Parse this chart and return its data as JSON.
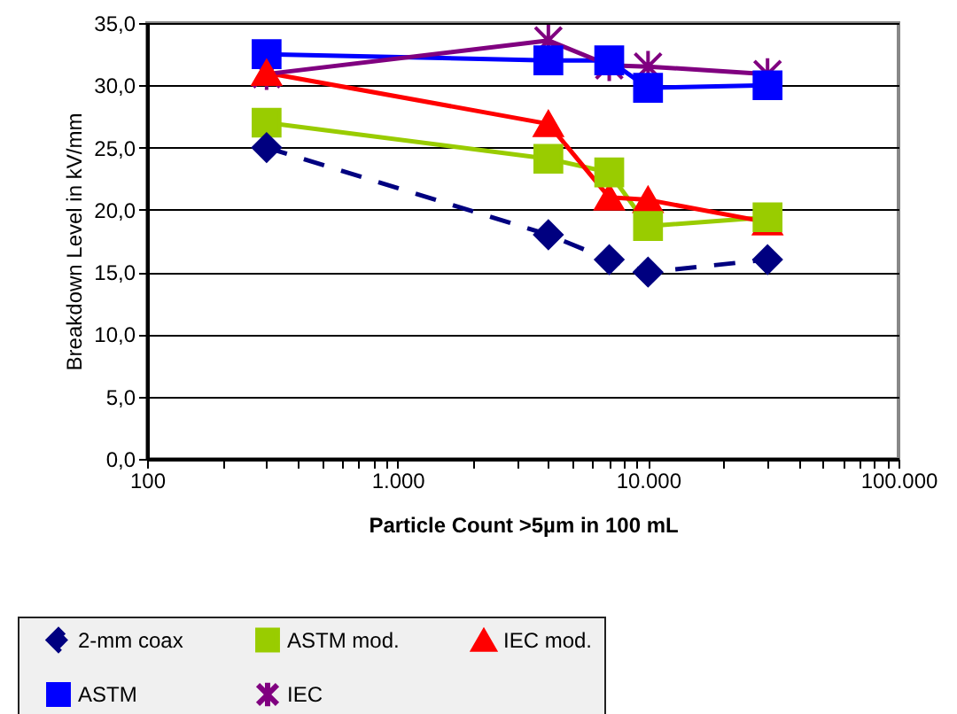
{
  "chart_data": {
    "type": "line",
    "xlabel": "Particle Count          >5µm in 100 mL",
    "ylabel": "Breakdown Level in kV/mm",
    "log": "x",
    "grid": "y",
    "legend": "bottom",
    "x": [
      300,
      4000,
      7000,
      10000,
      30000
    ],
    "xlim": [
      100,
      100000
    ],
    "xticks": [
      {
        "value": 100,
        "label": "100"
      },
      {
        "value": 200,
        "label": null
      },
      {
        "value": 300,
        "label": null
      },
      {
        "value": 400,
        "label": null
      },
      {
        "value": 500,
        "label": null
      },
      {
        "value": 600,
        "label": null
      },
      {
        "value": 700,
        "label": null
      },
      {
        "value": 800,
        "label": null
      },
      {
        "value": 900,
        "label": null
      },
      {
        "value": 1000,
        "label": "1.000"
      },
      {
        "value": 2000,
        "label": null
      },
      {
        "value": 3000,
        "label": null
      },
      {
        "value": 4000,
        "label": null
      },
      {
        "value": 5000,
        "label": null
      },
      {
        "value": 6000,
        "label": null
      },
      {
        "value": 7000,
        "label": null
      },
      {
        "value": 8000,
        "label": null
      },
      {
        "value": 9000,
        "label": null
      },
      {
        "value": 10000,
        "label": "10.000"
      },
      {
        "value": 20000,
        "label": null
      },
      {
        "value": 30000,
        "label": null
      },
      {
        "value": 40000,
        "label": null
      },
      {
        "value": 50000,
        "label": null
      },
      {
        "value": 60000,
        "label": null
      },
      {
        "value": 70000,
        "label": null
      },
      {
        "value": 80000,
        "label": null
      },
      {
        "value": 90000,
        "label": null
      },
      {
        "value": 100000,
        "label": "100.000"
      }
    ],
    "ylim": [
      0,
      35
    ],
    "yticks": [
      {
        "value": 0,
        "label": "0,0"
      },
      {
        "value": 5,
        "label": "5,0"
      },
      {
        "value": 10,
        "label": "10,0"
      },
      {
        "value": 15,
        "label": "15,0"
      },
      {
        "value": 20,
        "label": "20,0"
      },
      {
        "value": 25,
        "label": "25,0"
      },
      {
        "value": 30,
        "label": "30,0"
      },
      {
        "value": 35,
        "label": "35,0"
      }
    ],
    "series": [
      {
        "name": "2-mm coax",
        "color": "#000080",
        "marker": "diamond",
        "line_style": "dashed",
        "values": [
          25,
          18,
          16,
          15,
          16
        ]
      },
      {
        "name": "ASTM mod.",
        "color": "#99cc00",
        "marker": "square",
        "line_style": "solid",
        "values": [
          27,
          24.1,
          23,
          18.7,
          19.4
        ]
      },
      {
        "name": "IEC mod.",
        "color": "#ff0000",
        "marker": "triangle",
        "line_style": "solid",
        "values": [
          31,
          26.9,
          21,
          20.8,
          19
        ]
      },
      {
        "name": "ASTM",
        "color": "#0000ff",
        "marker": "square",
        "line_style": "solid",
        "values": [
          32.5,
          32,
          32,
          29.8,
          30
        ]
      },
      {
        "name": "IEC",
        "color": "#800080",
        "marker": "cross",
        "line_style": "solid",
        "values": [
          30.9,
          33.6,
          31.6,
          31.5,
          30.9
        ]
      }
    ]
  }
}
